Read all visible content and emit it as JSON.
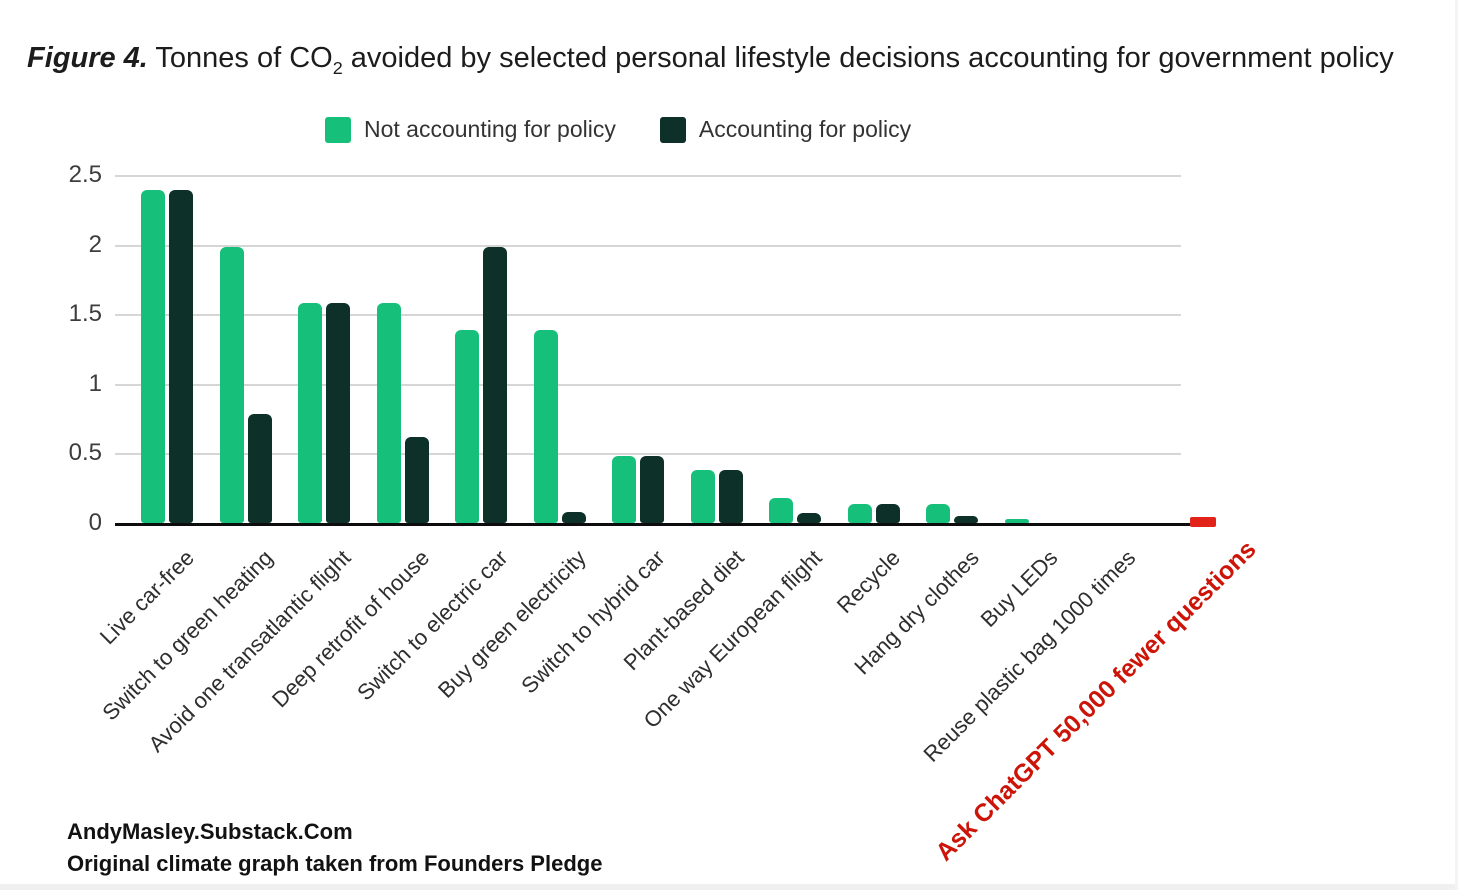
{
  "header": {
    "figure_label": "Figure 4.",
    "title_before_sub": " Tonnes of CO",
    "title_sub": "2",
    "title_after_sub": " avoided by selected personal lifestyle decisions accounting for government policy"
  },
  "chart_data": {
    "type": "bar",
    "title": "Figure 4. Tonnes of CO2 avoided by selected personal lifestyle decisions accounting for government policy",
    "xlabel": "",
    "ylabel": "",
    "ylim": [
      0,
      2.5
    ],
    "yticks": [
      0,
      0.5,
      1,
      1.5,
      2,
      2.5
    ],
    "grid": true,
    "legend_position": "top",
    "categories": [
      "Live car-free",
      "Switch to green heating",
      "Avoid one transatlantic flight",
      "Deep retrofit of house",
      "Switch to electric car",
      "Buy green electricity",
      "Switch to hybrid car",
      "Plant-based diet",
      "One way European flight",
      "Recycle",
      "Hang dry clothes",
      "Buy LEDs",
      "Reuse plastic bag 1000 times",
      "Ask ChatGPT 50,000 fewer questions"
    ],
    "series": [
      {
        "name": "Not accounting for policy",
        "color": "#17c07a",
        "values": [
          2.39,
          1.98,
          1.58,
          1.58,
          1.39,
          1.39,
          0.48,
          0.38,
          0.18,
          0.14,
          0.14,
          0.03,
          0,
          0
        ]
      },
      {
        "name": "Accounting for policy",
        "color": "#0d3029",
        "values": [
          2.39,
          0.78,
          1.58,
          0.62,
          1.98,
          0.08,
          0.48,
          0.38,
          0.07,
          0.14,
          0.05,
          0,
          0,
          0
        ]
      }
    ],
    "annotation": {
      "label": "Ask ChatGPT 50,000 fewer questions",
      "value": 0.04,
      "bar_color": "#e2231a",
      "text_color": "#cc1508"
    }
  },
  "footer": {
    "line1": "AndyMasley.Substack.Com",
    "line2": "Original climate graph taken from Founders Pledge"
  }
}
